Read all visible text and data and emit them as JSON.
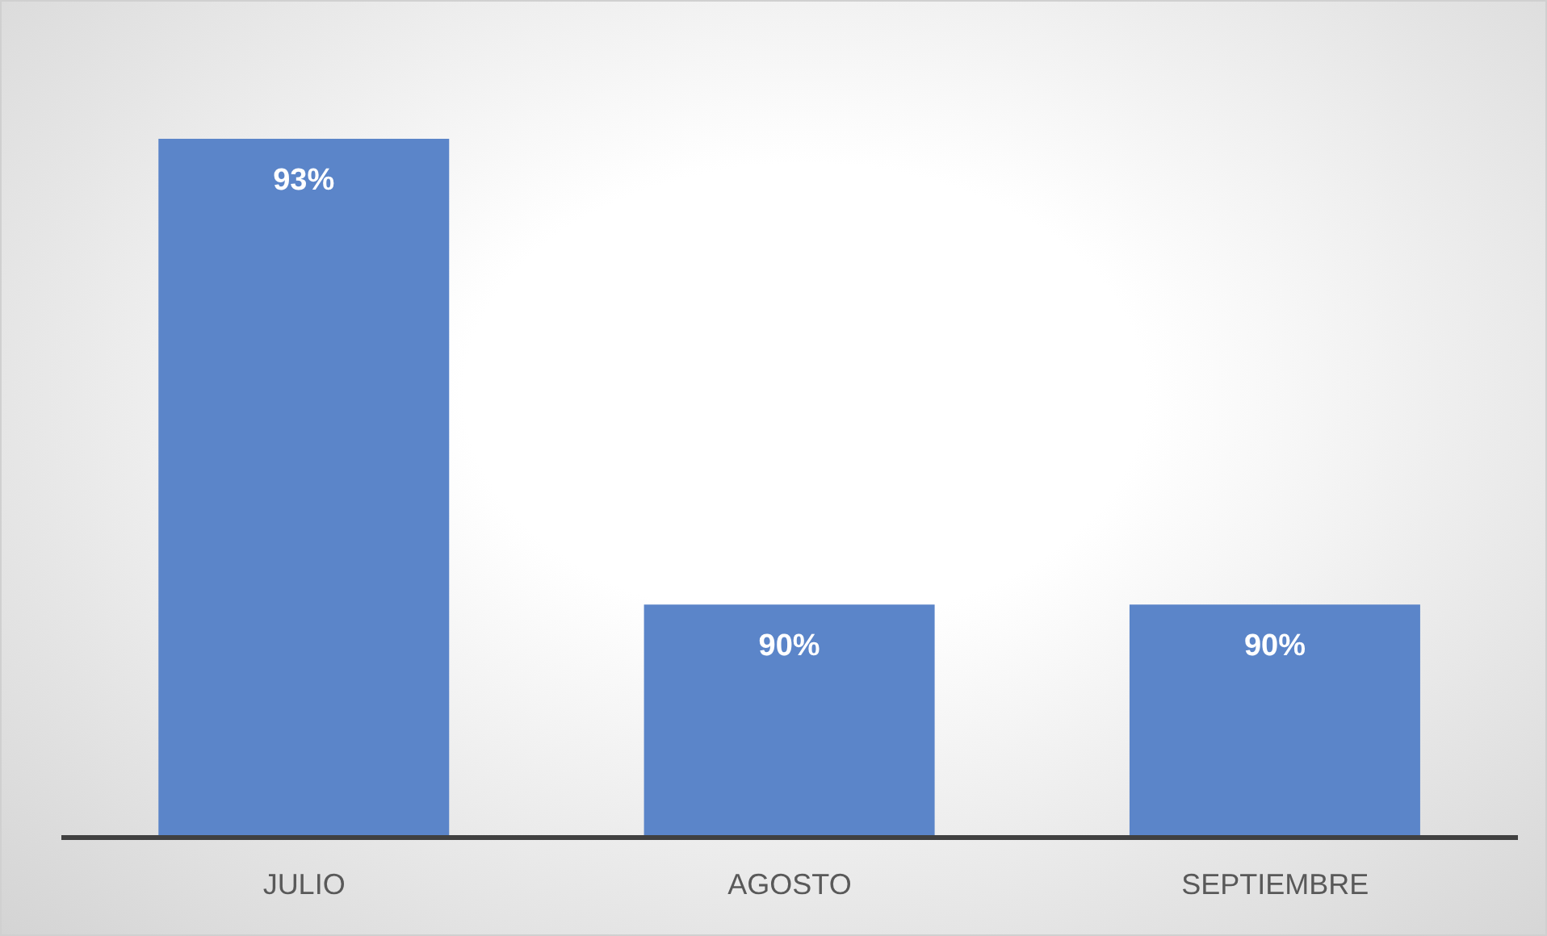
{
  "chart_data": {
    "type": "bar",
    "categories": [
      "JULIO",
      "AGOSTO",
      "SEPTIEMBRE"
    ],
    "values": [
      93,
      90,
      90
    ],
    "value_labels": [
      "93%",
      "90%",
      "90%"
    ],
    "color": "#5b85c9",
    "ylim": [
      88.5,
      93
    ]
  }
}
